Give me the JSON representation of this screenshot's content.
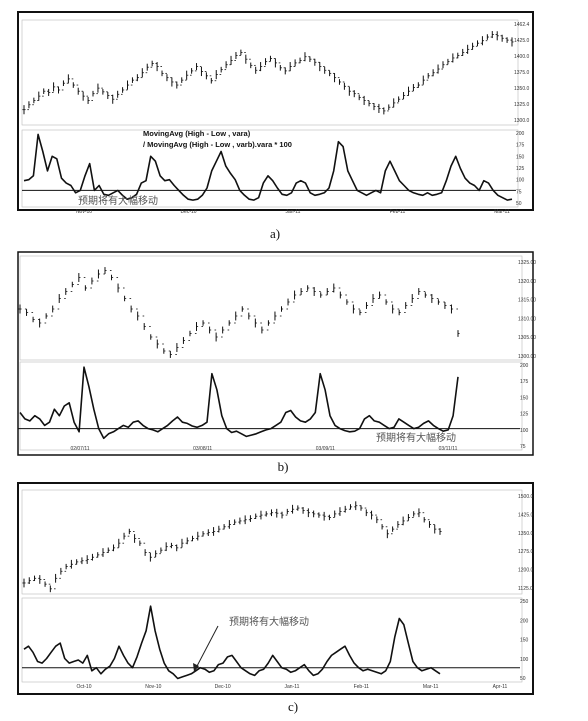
{
  "chart_data": [
    {
      "panel": "a",
      "type": "line",
      "caption": "a)",
      "formula_lines": [
        "MovingAvg (High - Low , vara)",
        "/ MovingAvg (High - Low , varb).vara * 100"
      ],
      "annotation": "预期将有大幅移动",
      "price_ticks": [
        "1462.4",
        "1425.0",
        "1400.0",
        "1375.0",
        "1350.0",
        "1325.0",
        "1300.0"
      ],
      "price_range": [
        1300,
        1462.4
      ],
      "price_closes": [
        1320,
        1328,
        1335,
        1342,
        1350,
        1348,
        1357,
        1352,
        1363,
        1370,
        1360,
        1350,
        1342,
        1335,
        1346,
        1355,
        1349,
        1343,
        1337,
        1345,
        1352,
        1360,
        1368,
        1372,
        1380,
        1389,
        1395,
        1390,
        1379,
        1372,
        1365,
        1360,
        1368,
        1376,
        1383,
        1390,
        1382,
        1375,
        1367,
        1377,
        1385,
        1393,
        1400,
        1408,
        1413,
        1402,
        1392,
        1384,
        1390,
        1398,
        1403,
        1396,
        1388,
        1383,
        1390,
        1396,
        1400,
        1406,
        1402,
        1397,
        1390,
        1384,
        1379,
        1372,
        1365,
        1358,
        1350,
        1346,
        1340,
        1335,
        1330,
        1325,
        1322,
        1318,
        1324,
        1331,
        1337,
        1343,
        1350,
        1356,
        1360,
        1368,
        1375,
        1380,
        1386,
        1393,
        1398,
        1404,
        1408,
        1413,
        1418,
        1423,
        1428,
        1432,
        1438,
        1442,
        1440,
        1436,
        1433,
        1430
      ],
      "osc_ticks": [
        "200",
        "175",
        "150",
        "125",
        "100",
        "75",
        "50"
      ],
      "osc_range": [
        50,
        200
      ],
      "osc_values": [
        100,
        102,
        110,
        195,
        160,
        120,
        150,
        145,
        105,
        95,
        90,
        75,
        80,
        110,
        135,
        80,
        90,
        72,
        70,
        75,
        80,
        70,
        62,
        65,
        72,
        95,
        100,
        150,
        140,
        110,
        100,
        102,
        90,
        80,
        70,
        62,
        60,
        62,
        70,
        85,
        120,
        140,
        160,
        130,
        115,
        102,
        80,
        70,
        62,
        60,
        65,
        95,
        110,
        100,
        85,
        72,
        70,
        75,
        95,
        100,
        95,
        75,
        70,
        72,
        75,
        85,
        120,
        180,
        170,
        120,
        100,
        80,
        75,
        70,
        75,
        80,
        75,
        120,
        140,
        120,
        100,
        90,
        80,
        75,
        72,
        70,
        75,
        70,
        72,
        75,
        100,
        130,
        150,
        125,
        105,
        95,
        90,
        80,
        100,
        95,
        80,
        70,
        65,
        60,
        62
      ],
      "reference_line": 80,
      "date_ticks": [
        "Nov-10",
        "Dec-10",
        "Jan-11",
        "Feb-11",
        "Mar-11"
      ]
    },
    {
      "panel": "b",
      "type": "line",
      "caption": "b)",
      "annotation": "预期将有大幅移动",
      "price_ticks": [
        "1325.00",
        "1320.00",
        "1315.00",
        "1310.00",
        "1305.00",
        "1300.00"
      ],
      "price_range": [
        1298,
        1326
      ],
      "price_closes": [
        1312,
        1311,
        1309,
        1308,
        1310,
        1312,
        1315,
        1317,
        1319,
        1321,
        1318,
        1320,
        1322,
        1323,
        1321,
        1318,
        1315,
        1312,
        1310,
        1307,
        1304,
        1302,
        1300,
        1299,
        1301,
        1303,
        1305,
        1307,
        1308,
        1306,
        1304,
        1306,
        1308,
        1310,
        1312,
        1310,
        1308,
        1306,
        1308,
        1310,
        1312,
        1314,
        1316,
        1317,
        1318,
        1317,
        1316,
        1317,
        1318,
        1316,
        1314,
        1312,
        1311,
        1313,
        1315,
        1316,
        1314,
        1312,
        1311,
        1313,
        1315,
        1317,
        1316,
        1315,
        1314,
        1313,
        1312,
        1305
      ],
      "osc_ticks": [
        "200",
        "175",
        "150",
        "125",
        "100",
        "75"
      ],
      "osc_range": [
        70,
        200
      ],
      "osc_values": [
        125,
        115,
        112,
        120,
        115,
        105,
        110,
        130,
        120,
        135,
        140,
        110,
        95,
        195,
        165,
        130,
        100,
        85,
        92,
        95,
        100,
        105,
        102,
        110,
        112,
        105,
        100,
        98,
        95,
        100,
        105,
        112,
        118,
        110,
        108,
        104,
        102,
        105,
        110,
        185,
        160,
        120,
        100,
        94,
        96,
        92,
        88,
        90,
        92,
        95,
        98,
        100,
        105,
        110,
        125,
        128,
        118,
        112,
        110,
        115,
        125,
        185,
        160,
        120,
        105,
        100,
        97,
        95,
        96,
        100,
        115,
        120,
        112,
        110,
        105,
        100,
        102,
        115,
        110,
        105,
        100,
        102,
        108,
        112,
        105,
        100,
        96,
        98,
        120,
        180
      ],
      "reference_line": 100,
      "date_ticks": [
        "02/07/11",
        "03/08/11",
        "03/09/11",
        "03/11/11"
      ]
    },
    {
      "panel": "c",
      "type": "line",
      "caption": "c)",
      "annotation": "预期将有大幅移动",
      "price_ticks": [
        "1500.0",
        "1425.0",
        "1350.0",
        "1275.0",
        "1200.0",
        "1125.0"
      ],
      "price_range": [
        1100,
        1510
      ],
      "price_closes": [
        1130,
        1140,
        1150,
        1145,
        1125,
        1105,
        1150,
        1180,
        1200,
        1210,
        1220,
        1225,
        1230,
        1240,
        1250,
        1260,
        1270,
        1280,
        1300,
        1330,
        1350,
        1320,
        1300,
        1260,
        1240,
        1255,
        1270,
        1285,
        1290,
        1280,
        1300,
        1310,
        1320,
        1330,
        1340,
        1345,
        1350,
        1360,
        1370,
        1380,
        1390,
        1395,
        1400,
        1405,
        1415,
        1420,
        1425,
        1430,
        1428,
        1420,
        1435,
        1445,
        1450,
        1440,
        1430,
        1425,
        1420,
        1415,
        1410,
        1425,
        1435,
        1445,
        1455,
        1460,
        1450,
        1430,
        1420,
        1400,
        1370,
        1340,
        1360,
        1380,
        1395,
        1410,
        1425,
        1430,
        1400,
        1380,
        1360,
        1350
      ],
      "osc_ticks": [
        "250",
        "200",
        "150",
        "100",
        "50"
      ],
      "osc_range": [
        40,
        300
      ],
      "osc_values": [
        140,
        150,
        130,
        100,
        95,
        110,
        130,
        150,
        160,
        110,
        95,
        100,
        105,
        95,
        120,
        70,
        80,
        60,
        75,
        85,
        110,
        150,
        120,
        95,
        80,
        115,
        160,
        200,
        280,
        200,
        140,
        95,
        70,
        60,
        45,
        50,
        55,
        60,
        70,
        80,
        75,
        65,
        70,
        90,
        95,
        115,
        120,
        100,
        80,
        70,
        60,
        55,
        70,
        75,
        95,
        120,
        100,
        80,
        75,
        65,
        70,
        80,
        90,
        70,
        55,
        60,
        75,
        100,
        120,
        130,
        140,
        150,
        120,
        95,
        80,
        70,
        75,
        70,
        65,
        60,
        70,
        100,
        180,
        240,
        220,
        160,
        100,
        80,
        70,
        75,
        80,
        70,
        60
      ],
      "reference_line": 80,
      "date_ticks": [
        "Oct-10",
        "Nov-10",
        "Dec-10",
        "Jan-11",
        "Feb-11",
        "Mar-11",
        "Apr-11"
      ]
    }
  ]
}
